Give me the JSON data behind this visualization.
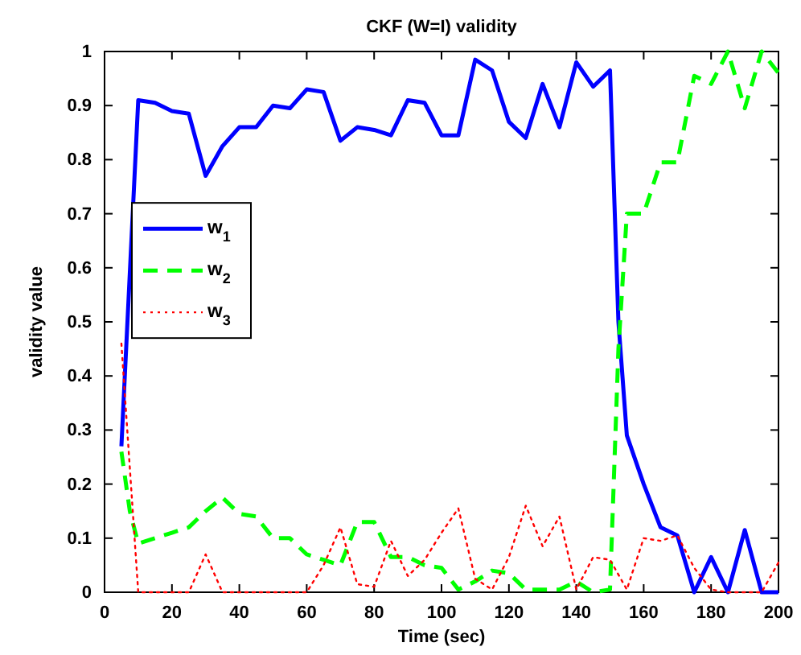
{
  "chart_data": {
    "type": "line",
    "title": "CKF (W=I) validity",
    "xlabel": "Time (sec)",
    "ylabel": "validity value",
    "xlim": [
      0,
      200
    ],
    "ylim": [
      0,
      1
    ],
    "xticks": [
      0,
      20,
      40,
      60,
      80,
      100,
      120,
      140,
      160,
      180,
      200
    ],
    "yticks": [
      0,
      0.1,
      0.2,
      0.3,
      0.4,
      0.5,
      0.6,
      0.7,
      0.8,
      0.9,
      1
    ],
    "legend": "left",
    "grid": false,
    "marker": "none",
    "series": [
      {
        "name": "w$_{1}$",
        "color": "#0000ff",
        "line_style": "solid",
        "x": [
          5,
          10,
          15,
          20,
          25,
          30,
          35,
          40,
          45,
          50,
          55,
          60,
          65,
          70,
          75,
          80,
          85,
          90,
          95,
          100,
          105,
          110,
          115,
          120,
          125,
          130,
          135,
          140,
          145,
          150,
          152.5,
          155,
          160,
          165,
          170,
          175,
          180,
          185,
          190,
          195,
          200
        ],
        "values": [
          0.27,
          0.91,
          0.905,
          0.89,
          0.885,
          0.77,
          0.825,
          0.86,
          0.86,
          0.9,
          0.895,
          0.93,
          0.925,
          0.835,
          0.86,
          0.855,
          0.845,
          0.91,
          0.905,
          0.845,
          0.845,
          0.985,
          0.965,
          0.87,
          0.84,
          0.94,
          0.86,
          0.98,
          0.935,
          0.965,
          0.5,
          0.29,
          0.2,
          0.12,
          0.105,
          0,
          0.065,
          0,
          0.115,
          0,
          0
        ]
      },
      {
        "name": "w$_{2}$",
        "color": "#00ff00",
        "line_style": "dashed",
        "x": [
          5,
          7.5,
          10,
          15,
          20,
          25,
          30,
          35,
          40,
          45,
          50,
          55,
          60,
          65,
          70,
          75,
          80,
          85,
          90,
          95,
          100,
          105,
          110,
          115,
          120,
          125,
          130,
          135,
          140,
          145,
          150,
          152.5,
          155,
          160,
          165,
          170,
          175,
          180,
          185,
          190,
          195,
          200
        ],
        "values": [
          0.26,
          0.15,
          0.09,
          0.1,
          0.11,
          0.12,
          0.15,
          0.175,
          0.145,
          0.14,
          0.1,
          0.1,
          0.07,
          0.06,
          0.05,
          0.13,
          0.13,
          0.065,
          0.065,
          0.05,
          0.045,
          0.005,
          0.02,
          0.04,
          0.035,
          0.005,
          0.005,
          0.005,
          0.02,
          0,
          0.005,
          0.45,
          0.7,
          0.7,
          0.795,
          0.795,
          0.955,
          0.94,
          1,
          0.895,
          1,
          0.96
        ]
      },
      {
        "name": "w$_{3}$",
        "color": "#ff0000",
        "line_style": "dotted",
        "x": [
          5,
          10,
          15,
          20,
          25,
          30,
          35,
          40,
          45,
          50,
          55,
          60,
          65,
          70,
          75,
          80,
          85,
          90,
          95,
          100,
          105,
          110,
          115,
          120,
          125,
          130,
          135,
          140,
          145,
          150,
          155,
          160,
          165,
          170,
          175,
          180,
          185,
          190,
          195,
          200
        ],
        "values": [
          0.46,
          0,
          0,
          0,
          0,
          0.07,
          0,
          0,
          0,
          0,
          0,
          0,
          0.05,
          0.12,
          0.015,
          0.01,
          0.095,
          0.03,
          0.06,
          0.11,
          0.155,
          0.025,
          0.005,
          0.065,
          0.16,
          0.085,
          0.14,
          0.005,
          0.065,
          0.06,
          0.005,
          0.1,
          0.095,
          0.105,
          0.045,
          0.005,
          0,
          0,
          0,
          0.055
        ]
      }
    ]
  }
}
